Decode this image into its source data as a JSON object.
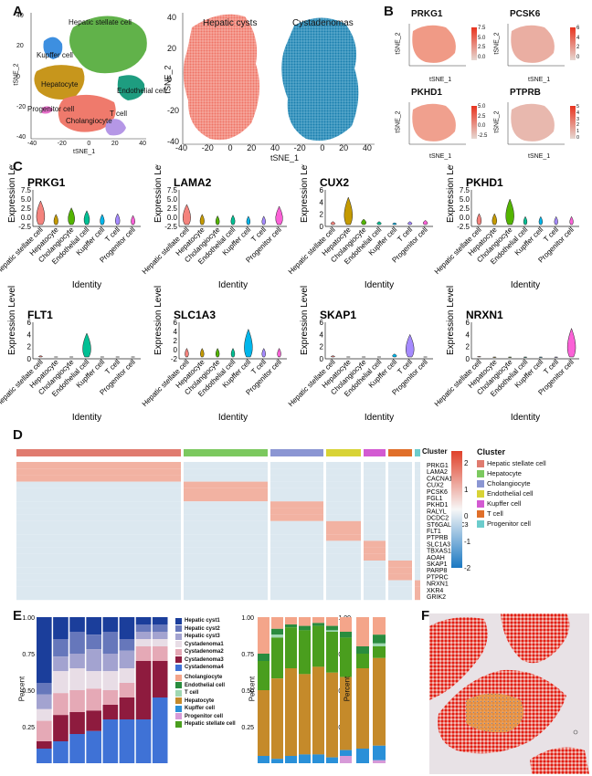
{
  "panels": {
    "a": "A",
    "b": "B",
    "c": "C",
    "d": "D",
    "e": "E",
    "f": "F"
  },
  "panel_a": {
    "axis_x": "tSNE_1",
    "axis_y": "tSNE_2",
    "cluster_labels": [
      "Hepatic stellate cell",
      "Kupffer cell",
      "Hepatocyte",
      "Endothelial cell",
      "Progenitor cell",
      "Cholangiocyte",
      "T cell"
    ],
    "ticks_left_x": [
      "-40",
      "-20",
      "0",
      "20",
      "40"
    ],
    "ticks_left_y": [
      "40",
      "20",
      "0",
      "-20",
      "-40"
    ],
    "ticks_mid_x": [
      "-40",
      "-20",
      "0",
      "20",
      "40",
      "-20",
      "0",
      "20",
      "40"
    ],
    "ticks_mid_y": [
      "40",
      "20",
      "0",
      "-20",
      "-40"
    ],
    "title_cysts": "Hepatic cysts",
    "title_cystadenomas": "Cystadenomas",
    "colors": {
      "cysts": "#f08070",
      "cystadenomas": "#1f86b2"
    }
  },
  "panel_b": {
    "axis_x": "tSNE_1",
    "axis_y": "tSNE_2",
    "ticks_x": [
      "-40",
      "0",
      "20",
      "40"
    ],
    "genes": [
      {
        "name": "PRKG1",
        "scale": [
          "7.5",
          "5.0",
          "2.5",
          "0.0"
        ]
      },
      {
        "name": "PCSK6",
        "scale": [
          "6",
          "4",
          "2",
          "0"
        ]
      },
      {
        "name": "PKHD1",
        "scale": [
          "5.0",
          "2.5",
          "0.0",
          "-2.5"
        ]
      },
      {
        "name": "PTPRB",
        "scale": [
          "5",
          "4",
          "3",
          "2",
          "1",
          "0"
        ]
      }
    ]
  },
  "panel_c": {
    "ylabel": "Expression Level",
    "xlabel": "Identity",
    "categories": [
      "Hepatic stellate cell",
      "Hepatocyte",
      "Cholangiocyte",
      "Endothelial cell",
      "Kupffer cell",
      "T cell",
      "Progenitor cell"
    ],
    "cat_colors": [
      "#f4837d",
      "#c49a00",
      "#53b400",
      "#00c094",
      "#00b6eb",
      "#a58aff",
      "#fb61d7"
    ]
  },
  "chart_data": [
    {
      "type": "violin",
      "title": "PRKG1",
      "ylabel": "Expression Level",
      "xlabel": "Identity",
      "yticks": [
        "7.5",
        "5.0",
        "2.5",
        "0.0",
        "-2.5"
      ],
      "ylim": [
        -2.5,
        7.5
      ],
      "categories": [
        "Hepatic stellate cell",
        "Hepatocyte",
        "Cholangiocyte",
        "Endothelial cell",
        "Kupffer cell",
        "T cell",
        "Progenitor cell"
      ],
      "values": [
        4.5,
        0.8,
        2.6,
        1.8,
        0.8,
        1.0,
        0.5
      ]
    },
    {
      "type": "violin",
      "title": "LAMA2",
      "ylabel": "Expression Level",
      "xlabel": "Identity",
      "yticks": [
        "7.5",
        "5.0",
        "2.5",
        "0.0",
        "-2.5"
      ],
      "ylim": [
        -2.5,
        7.5
      ],
      "categories": [
        "Hepatic stellate cell",
        "Hepatocyte",
        "Cholangiocyte",
        "Endothelial cell",
        "Kupffer cell",
        "T cell",
        "Progenitor cell"
      ],
      "values": [
        3.5,
        0.8,
        0.4,
        0.6,
        0.3,
        0.3,
        3.0
      ]
    },
    {
      "type": "violin",
      "title": "CUX2",
      "ylabel": "Expression Level",
      "xlabel": "Identity",
      "yticks": [
        "6",
        "4",
        "2",
        "0"
      ],
      "ylim": [
        0,
        6
      ],
      "categories": [
        "Hepatic stellate cell",
        "Hepatocyte",
        "Cholangiocyte",
        "Endothelial cell",
        "Kupffer cell",
        "T cell",
        "Progenitor cell"
      ],
      "values": [
        0.8,
        4.8,
        1.2,
        0.8,
        0.6,
        0.8,
        1.0
      ]
    },
    {
      "type": "violin",
      "title": "PKHD1",
      "ylabel": "Expression Level",
      "xlabel": "Identity",
      "yticks": [
        "7.5",
        "5.0",
        "2.5",
        "0.0",
        "-2.5"
      ],
      "ylim": [
        -2.5,
        7.5
      ],
      "categories": [
        "Hepatic stellate cell",
        "Hepatocyte",
        "Cholangiocyte",
        "Endothelial cell",
        "Kupffer cell",
        "T cell",
        "Progenitor cell"
      ],
      "values": [
        1.0,
        1.0,
        5.0,
        0.2,
        0.2,
        0.2,
        0.2
      ]
    },
    {
      "type": "violin",
      "title": "FLT1",
      "ylabel": "Expression Level",
      "xlabel": "Identity",
      "yticks": [
        "6",
        "4",
        "2",
        "0"
      ],
      "ylim": [
        0,
        6
      ],
      "categories": [
        "Hepatic stellate cell",
        "Hepatocyte",
        "Cholangiocyte",
        "Endothelial cell",
        "Kupffer cell",
        "T cell",
        "Progenitor cell"
      ],
      "values": [
        0.5,
        0.3,
        0.3,
        4.2,
        0.3,
        0.3,
        0.3
      ]
    },
    {
      "type": "violin",
      "title": "SLC1A3",
      "ylabel": "Expression Level",
      "xlabel": "Identity",
      "yticks": [
        "6",
        "4",
        "2",
        "0",
        "-2"
      ],
      "ylim": [
        -2,
        6
      ],
      "categories": [
        "Hepatic stellate cell",
        "Hepatocyte",
        "Cholangiocyte",
        "Endothelial cell",
        "Kupffer cell",
        "T cell",
        "Progenitor cell"
      ],
      "values": [
        0.3,
        0.3,
        0.3,
        0.3,
        4.5,
        0.3,
        0.3
      ]
    },
    {
      "type": "violin",
      "title": "SKAP1",
      "ylabel": "Expression Level",
      "xlabel": "Identity",
      "yticks": [
        "6",
        "4",
        "2",
        "0"
      ],
      "ylim": [
        0,
        6
      ],
      "categories": [
        "Hepatic stellate cell",
        "Hepatocyte",
        "Cholangiocyte",
        "Endothelial cell",
        "Kupffer cell",
        "T cell",
        "Progenitor cell"
      ],
      "values": [
        0.5,
        0.3,
        0.3,
        0.3,
        0.8,
        4.0,
        0.3
      ]
    },
    {
      "type": "violin",
      "title": "NRXN1",
      "ylabel": "Expression Level",
      "xlabel": "Identity",
      "yticks": [
        "6",
        "4",
        "2",
        "0"
      ],
      "ylim": [
        0,
        6
      ],
      "categories": [
        "Hepatic stellate cell",
        "Hepatocyte",
        "Cholangiocyte",
        "Endothelial cell",
        "Kupffer cell",
        "T cell",
        "Progenitor cell"
      ],
      "values": [
        0.4,
        0.2,
        0.2,
        0.2,
        0.2,
        0.2,
        5.0
      ]
    }
  ],
  "panel_d": {
    "genes": [
      "PRKG1",
      "LAMA2",
      "CACNA1C",
      "CUX2",
      "PCSK6",
      "FGL1",
      "PKHD1",
      "RALYL",
      "DCDC2",
      "ST6GALNAC3",
      "FLT1",
      "PTPRB",
      "SLC1A3",
      "TBXAS1",
      "AOAH",
      "SKAP1",
      "PARP8",
      "PTPRC",
      "NRXN1",
      "XKR4",
      "GRIK2"
    ],
    "cluster_title": "Cluster",
    "scale_ticks": [
      "2",
      "1",
      "0",
      "-1",
      "-2"
    ],
    "legend_title": "Cluster",
    "legend": [
      "Hepatic stellate cell",
      "Hepatocyte",
      "Cholangiocyte",
      "Endothelial cell",
      "Kupffer cell",
      "T cell",
      "Progenitor cell"
    ],
    "legend_colors": [
      "#e07b6f",
      "#7cc95f",
      "#8b96d3",
      "#d8d336",
      "#d35ad2",
      "#e06f2a",
      "#6ccccc"
    ]
  },
  "panel_e": {
    "ylabel": "Percent",
    "yticks": [
      "1.00",
      "0.75",
      "0.50",
      "0.25"
    ],
    "sample_legend": [
      "Hepatic cyst1",
      "Hepatic cyst2",
      "Hepatic cyst3",
      "Cystadenoma1",
      "Cystadenoma2",
      "Cystadenoma3",
      "Cystadenoma4"
    ],
    "sample_colors": [
      "#1b3e9b",
      "#6677bb",
      "#a3a3d0",
      "#e8dde6",
      "#e5a9b6",
      "#8e1b3e",
      "#3f72d6"
    ],
    "cell_legend": [
      "Cholangiocyte",
      "Endothelial cell",
      "T cell",
      "Hepatocyte",
      "Kupffer cell",
      "Progenitor cell",
      "Hepatic stellate cell"
    ],
    "cell_colors": [
      "#f4a58a",
      "#2a8c3e",
      "#a0d8b2",
      "#c58a2a",
      "#2a90d8",
      "#d79ad8",
      "#4a9e1e"
    ]
  }
}
